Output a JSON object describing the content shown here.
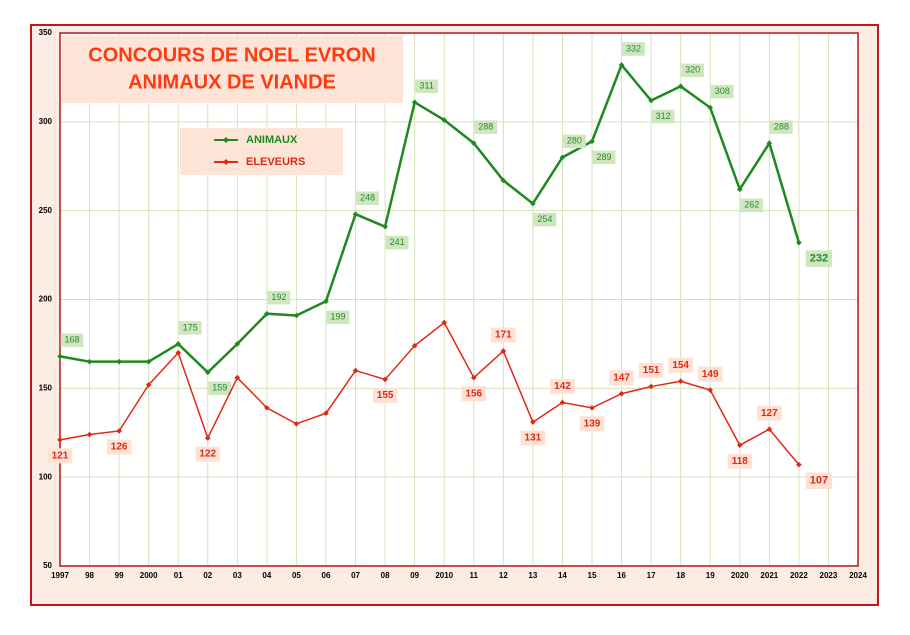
{
  "chart_data": {
    "type": "line",
    "title": "CONCOURS DE NOEL EVRON",
    "subtitle": "ANIMAUX DE VIANDE",
    "categories": [
      "1997",
      "98",
      "99",
      "2000",
      "01",
      "02",
      "03",
      "04",
      "05",
      "06",
      "07",
      "08",
      "09",
      "2010",
      "11",
      "12",
      "13",
      "14",
      "15",
      "16",
      "17",
      "18",
      "19",
      "2020",
      "2021",
      "2022",
      "2023",
      "2024"
    ],
    "series": [
      {
        "name": "ANIMAUX",
        "color": "#1e8a1e",
        "values": [
          168,
          165,
          165,
          165,
          175,
          159,
          175,
          192,
          191,
          199,
          248,
          241,
          311,
          301,
          288,
          267,
          254,
          280,
          289,
          332,
          312,
          320,
          308,
          262,
          288,
          232,
          null,
          null
        ],
        "value_labels": [
          "168",
          null,
          null,
          null,
          "175",
          "159",
          null,
          "192",
          null,
          "199",
          "248",
          "241",
          "311",
          null,
          "288",
          null,
          "254",
          "280",
          "289",
          "332",
          "312",
          "320",
          "308",
          "262",
          "288",
          "232",
          null,
          null
        ]
      },
      {
        "name": "ELEVEURS",
        "color": "#e02818",
        "values": [
          121,
          124,
          126,
          152,
          170,
          122,
          156,
          139,
          130,
          136,
          160,
          155,
          174,
          187,
          156,
          171,
          131,
          142,
          139,
          147,
          151,
          154,
          149,
          118,
          127,
          107,
          null,
          null
        ],
        "value_labels": [
          "121",
          null,
          "126",
          null,
          null,
          "122",
          null,
          null,
          null,
          null,
          null,
          "155",
          null,
          null,
          "156",
          "171",
          "131",
          "142",
          "139",
          "147",
          "151",
          "154",
          "149",
          "118",
          "127",
          "107",
          null,
          null
        ]
      }
    ],
    "ylim": [
      50,
      350
    ],
    "yticks": [
      50,
      100,
      150,
      200,
      250,
      300,
      350
    ],
    "grid": true
  }
}
